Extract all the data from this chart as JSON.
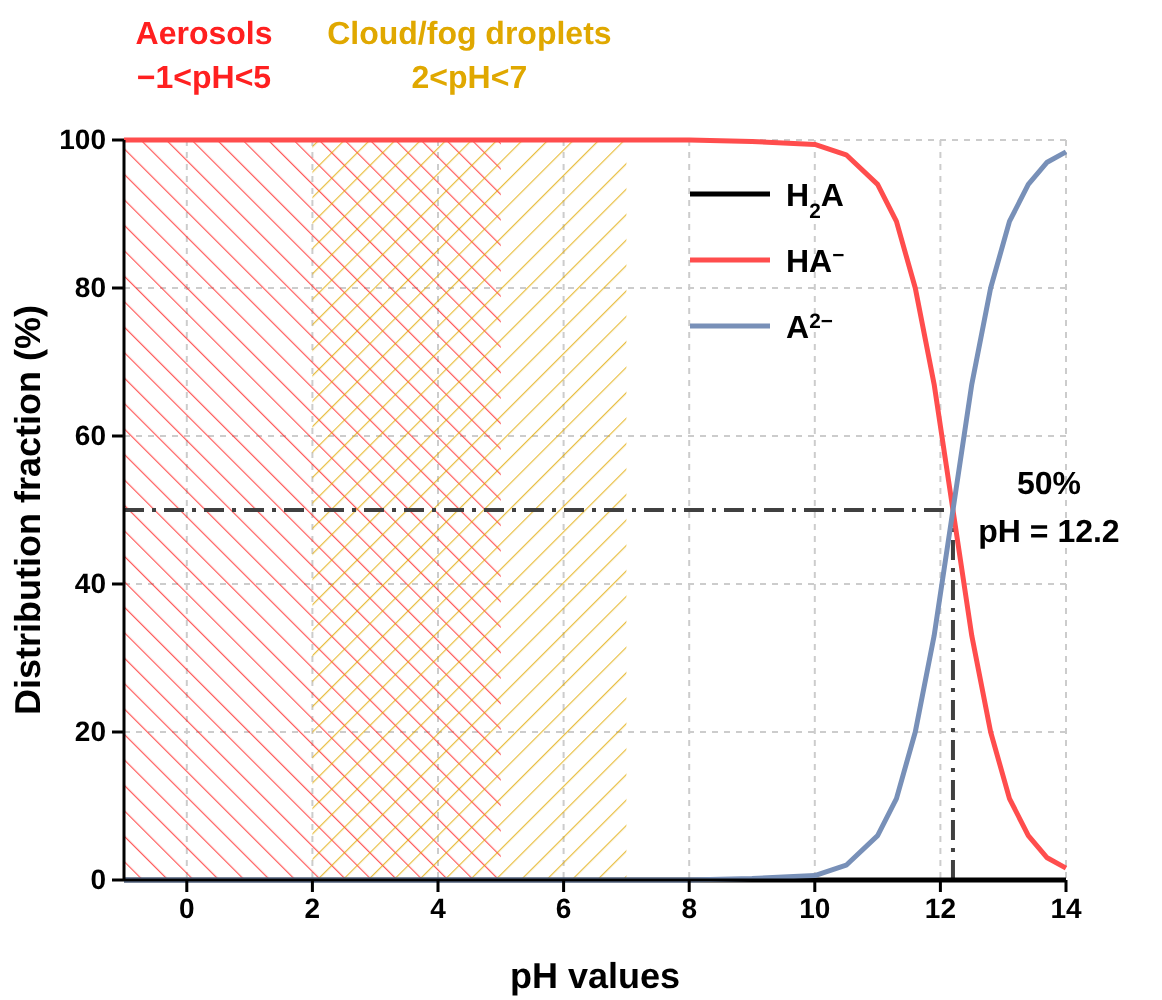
{
  "chart_data": {
    "type": "line",
    "xlabel": "pH values",
    "ylabel": "Distribution fraction (%)",
    "x": [
      -1,
      0,
      2,
      4,
      6,
      8,
      9,
      10,
      10.5,
      11,
      11.3,
      11.6,
      11.9,
      12.2,
      12.5,
      12.8,
      13.1,
      13.4,
      13.7,
      14
    ],
    "series": [
      {
        "name": "H$_{2}$A",
        "color": "#000000",
        "values": [
          0,
          0,
          0,
          0,
          0,
          0,
          0,
          0,
          0,
          0,
          0,
          0,
          0,
          0,
          0,
          0,
          0,
          0,
          0,
          0
        ]
      },
      {
        "name": "HA$^{−}$",
        "color": "#ff4d4d",
        "values": [
          100,
          100,
          100,
          100,
          100,
          100,
          99.8,
          99.4,
          98,
          94,
          89,
          80,
          67,
          50,
          33,
          20,
          11,
          6,
          3,
          1.6
        ]
      },
      {
        "name": "A$^{2−}$",
        "color": "#7890b8",
        "values": [
          0,
          0,
          0,
          0,
          0,
          0,
          0.2,
          0.6,
          2,
          6,
          11,
          20,
          33,
          50,
          67,
          80,
          89,
          94,
          97,
          98.4
        ]
      }
    ],
    "xlim": [
      -1,
      14
    ],
    "xticks": [
      0,
      2,
      4,
      6,
      8,
      10,
      12,
      14
    ],
    "ylim": [
      0,
      100
    ],
    "yticks": [
      0,
      20,
      40,
      60,
      80,
      100
    ],
    "grid": true,
    "legend": "top right",
    "line_style": "solid",
    "marker": "none",
    "bands": [
      {
        "axis": "x",
        "from": -1,
        "to": 5,
        "label": "Aerosols\n−1<pH<5",
        "color": "#ff2020"
      },
      {
        "axis": "x",
        "from": 2,
        "to": 7,
        "label": "Cloud/fog droplets\n2<pH<7",
        "color": "#e0a800"
      }
    ],
    "ref_lines": [
      {
        "axis": "y",
        "value": 50,
        "color": "#404040",
        "line_style": "dashdot"
      },
      {
        "axis": "x",
        "value": 12.2,
        "color": "#404040",
        "line_style": "dashdot"
      }
    ],
    "annotations": [
      {
        "text": "50%\npH = 12.2",
        "x": 12.2,
        "y": 50
      }
    ]
  }
}
